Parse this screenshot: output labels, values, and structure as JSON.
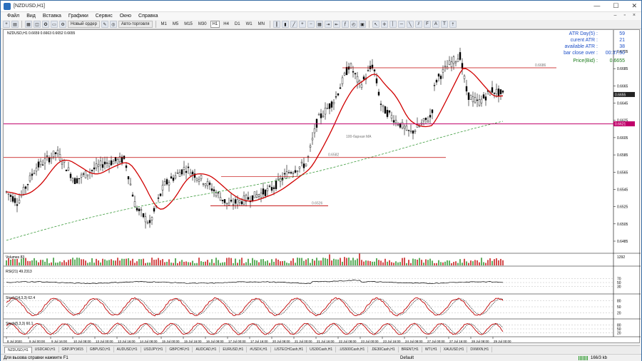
{
  "window": {
    "title": "[NZDUSD,H1]"
  },
  "menu": [
    "Файл",
    "Вид",
    "Вставка",
    "Графики",
    "Сервис",
    "Окно",
    "Справка"
  ],
  "toolbar": {
    "new_order": "Новый ордер",
    "auto_trading": "Авто-торговля",
    "timeframes": [
      "M1",
      "M5",
      "M15",
      "M30",
      "H1",
      "H4",
      "D1",
      "W1",
      "MN"
    ]
  },
  "chart": {
    "symbol_label": "NZDUSD,H1  0.6659 0.6663 0.6652 0.6655",
    "atr": [
      {
        "label": "ATR Day(5) :",
        "value": "59"
      },
      {
        "label": "curent ATR :",
        "value": "21"
      },
      {
        "label": "available ATR :",
        "value": "38"
      },
      {
        "label": "bar close over :",
        "value": "00:37:50"
      }
    ],
    "price_bid_label": "Price(Bid) :",
    "price_bid_value": "0.6655",
    "annotations": {
      "level_6686": "0.6686",
      "level_6582": "0.6582",
      "level_6526": "0.6526",
      "ma_label": "100-барная МА"
    },
    "price_ticks": [
      "0.6705",
      "0.6685",
      "0.6665",
      "0.6645",
      "0.6625",
      "0.6605",
      "0.6585",
      "0.6565",
      "0.6545",
      "0.6525",
      "0.6505",
      "0.6485"
    ],
    "current_price_tag": "0.6655",
    "red_level_tag": "0.6621",
    "date_ticks": [
      "8 Jul 2020",
      "9 Jul 00:00",
      "9 Jul 16:00",
      "10 Jul 08:00",
      "13 Jul 00:00",
      "13 Jul 16:00",
      "14 Jul 08:00",
      "15 Jul 00:00",
      "15 Jul 16:00",
      "16 Jul 08:00",
      "17 Jul 00:00",
      "17 Jul 16:00",
      "20 Jul 08:00",
      "21 Jul 00:00",
      "21 Jul 16:00",
      "22 Jul 08:00",
      "23 Jul 00:00",
      "23 Jul 16:00",
      "24 Jul 08:00",
      "27 Jul 00:00",
      "27 Jul 16:00",
      "28 Jul 08:00",
      "29 Jul 00:00"
    ],
    "volumes_label": "Volumes 83",
    "volumes_tick": "1292",
    "rsi_label": "RSI(21) 49.2313",
    "rsi_ticks": [
      "70",
      "50",
      "30"
    ],
    "stoch1_label": "Stoch(14,3,3) 62.4",
    "stoch2_label": "Stoch(5,3,3) 60.1",
    "stoch_ticks": [
      "80",
      "50",
      "20"
    ]
  },
  "tabs": [
    "NZDUSD,H1",
    "USDCAD,H1",
    "GBPJPY,M15",
    "GBPUSD,H1",
    "AUDUSD,H1",
    "USDJPY,H1",
    "GBPCHF,H1",
    "AUDCAD,H1",
    "EURUSD,H1",
    "#USDX,H1",
    ".USTECHCash,H1",
    "US30Cash,H1",
    ".US500Cash,H1",
    ".DE30Cash,H1",
    "BRENT,H1",
    "WTI,H1",
    "XAUUSD,H1",
    "DXMXN,H1"
  ],
  "status": {
    "hint": "Для вызова справки нажмите F1",
    "profile": "Default",
    "traffic": "166/3 kb"
  },
  "colors": {
    "ma100": "#d00000",
    "ma200": "#3a9a3a",
    "level_red": "#c00000",
    "level_magenta": "#c0006a",
    "stoch_main": "#c00000"
  }
}
